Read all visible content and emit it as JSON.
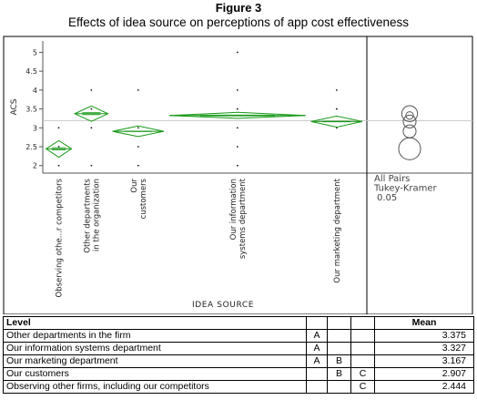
{
  "figure": {
    "title": "Figure 3",
    "subtitle": "Effects of idea source on perceptions of app cost effectiveness"
  },
  "chart_data": {
    "type": "scatter",
    "subtype": "oneway means diamonds with comparison circles",
    "xlabel": "IDEA SOURCE",
    "ylabel": "ACS",
    "ylim": [
      1.8,
      5.3
    ],
    "yticks": [
      2,
      2.5,
      3,
      3.5,
      4,
      4.5,
      5
    ],
    "ytick_labels": [
      "2",
      "2.5",
      "3",
      "3.5",
      "4",
      "4.5",
      "5"
    ],
    "grand_mean": 3.19,
    "categories": [
      {
        "label": "Observing othe...r competitors",
        "mean": 2.444,
        "ci": [
          2.22,
          2.66
        ],
        "points": [
          2,
          2.5,
          3
        ],
        "width_weight": 0.5
      },
      {
        "label": "Other departments in the organization",
        "mean": 3.375,
        "ci": [
          3.17,
          3.58
        ],
        "points": [
          2,
          3,
          3.5,
          4
        ],
        "width_weight": 0.65
      },
      {
        "label": "Our customers",
        "mean": 2.907,
        "ci": [
          2.77,
          3.05
        ],
        "points": [
          2,
          2.5,
          3,
          4
        ],
        "width_weight": 1.0
      },
      {
        "label": "Our information systems department",
        "mean": 3.327,
        "ci": [
          3.25,
          3.41
        ],
        "points": [
          2,
          2.5,
          3,
          3.5,
          4,
          5
        ],
        "width_weight": 2.5
      },
      {
        "label": "Our marketing department",
        "mean": 3.167,
        "ci": [
          3.02,
          3.31
        ],
        "points": [
          3,
          3.5,
          4
        ],
        "width_weight": 1.0
      }
    ],
    "comparison_circles": [
      {
        "center": 3.375,
        "radius": 0.21
      },
      {
        "center": 3.327,
        "radius": 0.1
      },
      {
        "center": 3.167,
        "radius": 0.17
      },
      {
        "center": 2.907,
        "radius": 0.17
      },
      {
        "center": 2.444,
        "radius": 0.29
      }
    ],
    "comparison_label": [
      "All Pairs",
      "Tukey-Kramer",
      "0.05"
    ],
    "colors": {
      "diamond": "#1a9a1a",
      "grand_mean_line": "#c8c8c8",
      "circle": "#555555",
      "points": "#111111"
    }
  },
  "table": {
    "headers": [
      "Level",
      "",
      "",
      "",
      "Mean"
    ],
    "rows": [
      {
        "level": "Other departments in the firm",
        "g1": "A",
        "g2": "",
        "g3": "",
        "mean": "3.375"
      },
      {
        "level": "Our information systems department",
        "g1": "A",
        "g2": "",
        "g3": "",
        "mean": "3.327"
      },
      {
        "level": "Our marketing department",
        "g1": "A",
        "g2": "B",
        "g3": "",
        "mean": "3.167"
      },
      {
        "level": "Our customers",
        "g1": "",
        "g2": "B",
        "g3": "C",
        "mean": "2.907"
      },
      {
        "level": "Observing other firms, including our competitors",
        "g1": "",
        "g2": "",
        "g3": "C",
        "mean": "2.444"
      }
    ]
  }
}
